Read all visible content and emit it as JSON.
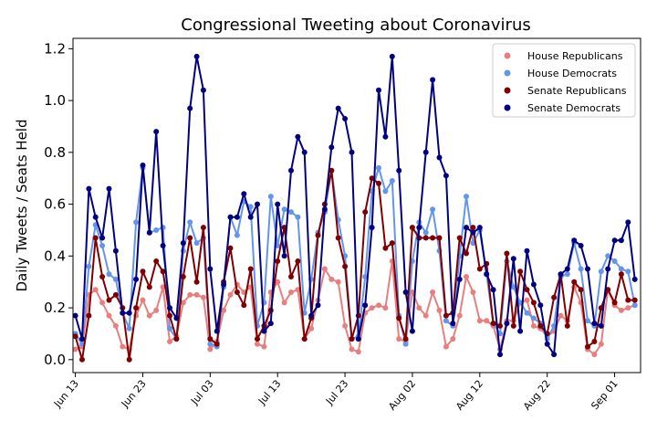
{
  "chart_data": {
    "type": "line",
    "title": "Congressional Tweeting about Coronavirus",
    "ylabel": "Daily Tweets / Seats Held",
    "xlabel": "",
    "ylim": [
      -0.05,
      1.24
    ],
    "yticks": [
      0.0,
      0.2,
      0.4,
      0.6,
      0.8,
      1.0,
      1.2
    ],
    "ytick_labels": [
      "0.0",
      "0.2",
      "0.4",
      "0.6",
      "0.8",
      "1.0",
      "1.2"
    ],
    "x_start": "2020-06-13",
    "x_end": "2020-09-05",
    "xticks": [
      "2020-06-13",
      "2020-06-23",
      "2020-07-03",
      "2020-07-13",
      "2020-07-23",
      "2020-08-02",
      "2020-08-12",
      "2020-08-22",
      "2020-09-01"
    ],
    "xtick_labels": [
      "Jun 13",
      "Jun 23",
      "Jul 03",
      "Jul 13",
      "Jul 23",
      "Aug 02",
      "Aug 12",
      "Aug 22",
      "Sep 01"
    ],
    "legend_position": "top-right",
    "series": [
      {
        "name": "House Republicans",
        "color": "#e77f7f",
        "x": [
          "2020-06-13",
          "2020-06-14",
          "2020-06-15",
          "2020-06-16",
          "2020-06-17",
          "2020-06-18",
          "2020-06-19",
          "2020-06-20",
          "2020-06-21",
          "2020-06-22",
          "2020-06-23",
          "2020-06-24",
          "2020-06-25",
          "2020-06-26",
          "2020-06-27",
          "2020-06-28",
          "2020-06-29",
          "2020-06-30",
          "2020-07-01",
          "2020-07-02",
          "2020-07-03",
          "2020-07-04",
          "2020-07-05",
          "2020-07-06",
          "2020-07-07",
          "2020-07-08",
          "2020-07-09",
          "2020-07-10",
          "2020-07-11",
          "2020-07-12",
          "2020-07-13",
          "2020-07-14",
          "2020-07-15",
          "2020-07-16",
          "2020-07-17",
          "2020-07-18",
          "2020-07-19",
          "2020-07-20",
          "2020-07-21",
          "2020-07-22",
          "2020-07-23",
          "2020-07-24",
          "2020-07-25",
          "2020-07-26",
          "2020-07-27",
          "2020-07-28",
          "2020-07-29",
          "2020-07-30",
          "2020-07-31",
          "2020-08-01",
          "2020-08-02",
          "2020-08-03",
          "2020-08-04",
          "2020-08-05",
          "2020-08-06",
          "2020-08-07",
          "2020-08-08",
          "2020-08-09",
          "2020-08-10",
          "2020-08-11",
          "2020-08-12",
          "2020-08-13",
          "2020-08-14",
          "2020-08-15",
          "2020-08-16",
          "2020-08-17",
          "2020-08-18",
          "2020-08-19",
          "2020-08-20",
          "2020-08-21",
          "2020-08-22",
          "2020-08-23",
          "2020-08-24",
          "2020-08-25",
          "2020-08-26",
          "2020-08-27",
          "2020-08-28",
          "2020-08-29",
          "2020-08-30",
          "2020-08-31",
          "2020-09-01",
          "2020-09-02",
          "2020-09-03",
          "2020-09-04"
        ],
        "values": [
          0.04,
          0.05,
          0.25,
          0.27,
          0.22,
          0.17,
          0.13,
          0.05,
          0.04,
          0.17,
          0.23,
          0.17,
          0.19,
          0.28,
          0.07,
          0.09,
          0.22,
          0.25,
          0.25,
          0.24,
          0.04,
          0.07,
          0.19,
          0.25,
          0.29,
          0.26,
          0.28,
          0.06,
          0.05,
          0.26,
          0.3,
          0.22,
          0.26,
          0.27,
          0.08,
          0.12,
          0.23,
          0.35,
          0.31,
          0.3,
          0.13,
          0.04,
          0.03,
          0.18,
          0.2,
          0.21,
          0.2,
          0.38,
          0.08,
          0.07,
          0.26,
          0.2,
          0.17,
          0.26,
          0.19,
          0.05,
          0.08,
          0.17,
          0.32,
          0.26,
          0.15,
          0.15,
          0.13,
          0.04,
          0.15,
          0.15,
          0.22,
          0.23,
          0.13,
          0.12,
          0.09,
          0.11,
          0.17,
          0.15,
          0.28,
          0.22,
          0.04,
          0.02,
          0.06,
          0.27,
          0.21,
          0.19,
          0.2,
          0.21
        ]
      },
      {
        "name": "House Democrats",
        "color": "#6495ed",
        "x": [
          "2020-06-13",
          "2020-06-14",
          "2020-06-15",
          "2020-06-16",
          "2020-06-17",
          "2020-06-18",
          "2020-06-19",
          "2020-06-20",
          "2020-06-21",
          "2020-06-22",
          "2020-06-23",
          "2020-06-24",
          "2020-06-25",
          "2020-06-26",
          "2020-06-27",
          "2020-06-28",
          "2020-06-29",
          "2020-06-30",
          "2020-07-01",
          "2020-07-02",
          "2020-07-03",
          "2020-07-04",
          "2020-07-05",
          "2020-07-06",
          "2020-07-07",
          "2020-07-08",
          "2020-07-09",
          "2020-07-10",
          "2020-07-11",
          "2020-07-12",
          "2020-07-13",
          "2020-07-14",
          "2020-07-15",
          "2020-07-16",
          "2020-07-17",
          "2020-07-18",
          "2020-07-19",
          "2020-07-20",
          "2020-07-21",
          "2020-07-22",
          "2020-07-23",
          "2020-07-24",
          "2020-07-25",
          "2020-07-26",
          "2020-07-27",
          "2020-07-28",
          "2020-07-29",
          "2020-07-30",
          "2020-07-31",
          "2020-08-01",
          "2020-08-02",
          "2020-08-03",
          "2020-08-04",
          "2020-08-05",
          "2020-08-06",
          "2020-08-07",
          "2020-08-08",
          "2020-08-09",
          "2020-08-10",
          "2020-08-11",
          "2020-08-12",
          "2020-08-13",
          "2020-08-14",
          "2020-08-15",
          "2020-08-16",
          "2020-08-17",
          "2020-08-18",
          "2020-08-19",
          "2020-08-20",
          "2020-08-21",
          "2020-08-22",
          "2020-08-23",
          "2020-08-24",
          "2020-08-25",
          "2020-08-26",
          "2020-08-27",
          "2020-08-28",
          "2020-08-29",
          "2020-08-30",
          "2020-08-31",
          "2020-09-01",
          "2020-09-02",
          "2020-09-03",
          "2020-09-04"
        ],
        "values": [
          0.1,
          0.06,
          0.36,
          0.52,
          0.44,
          0.33,
          0.31,
          0.18,
          0.12,
          0.53,
          0.74,
          0.49,
          0.5,
          0.51,
          0.12,
          0.08,
          0.42,
          0.53,
          0.45,
          0.47,
          0.06,
          0.05,
          0.28,
          0.55,
          0.48,
          0.61,
          0.59,
          0.13,
          0.22,
          0.63,
          0.44,
          0.58,
          0.57,
          0.55,
          0.18,
          0.31,
          0.49,
          0.57,
          0.73,
          0.54,
          0.4,
          0.08,
          0.09,
          0.32,
          0.65,
          0.74,
          0.65,
          0.69,
          0.17,
          0.06,
          0.38,
          0.53,
          0.49,
          0.58,
          0.42,
          0.15,
          0.13,
          0.4,
          0.63,
          0.45,
          0.5,
          0.33,
          0.14,
          0.1,
          0.38,
          0.28,
          0.22,
          0.18,
          0.16,
          0.14,
          0.08,
          0.13,
          0.32,
          0.33,
          0.45,
          0.35,
          0.15,
          0.13,
          0.34,
          0.4,
          0.38,
          0.35,
          0.34,
          0.21
        ]
      },
      {
        "name": "Senate Republicans",
        "color": "#800000",
        "x": [
          "2020-06-13",
          "2020-06-14",
          "2020-06-15",
          "2020-06-16",
          "2020-06-17",
          "2020-06-18",
          "2020-06-19",
          "2020-06-20",
          "2020-06-21",
          "2020-06-22",
          "2020-06-23",
          "2020-06-24",
          "2020-06-25",
          "2020-06-26",
          "2020-06-27",
          "2020-06-28",
          "2020-06-29",
          "2020-06-30",
          "2020-07-01",
          "2020-07-02",
          "2020-07-03",
          "2020-07-04",
          "2020-07-05",
          "2020-07-06",
          "2020-07-07",
          "2020-07-08",
          "2020-07-09",
          "2020-07-10",
          "2020-07-11",
          "2020-07-12",
          "2020-07-13",
          "2020-07-14",
          "2020-07-15",
          "2020-07-16",
          "2020-07-17",
          "2020-07-18",
          "2020-07-19",
          "2020-07-20",
          "2020-07-21",
          "2020-07-22",
          "2020-07-23",
          "2020-07-24",
          "2020-07-25",
          "2020-07-26",
          "2020-07-27",
          "2020-07-28",
          "2020-07-29",
          "2020-07-30",
          "2020-07-31",
          "2020-08-01",
          "2020-08-02",
          "2020-08-03",
          "2020-08-04",
          "2020-08-05",
          "2020-08-06",
          "2020-08-07",
          "2020-08-08",
          "2020-08-09",
          "2020-08-10",
          "2020-08-11",
          "2020-08-12",
          "2020-08-13",
          "2020-08-14",
          "2020-08-15",
          "2020-08-16",
          "2020-08-17",
          "2020-08-18",
          "2020-08-19",
          "2020-08-20",
          "2020-08-21",
          "2020-08-22",
          "2020-08-23",
          "2020-08-24",
          "2020-08-25",
          "2020-08-26",
          "2020-08-27",
          "2020-08-28",
          "2020-08-29",
          "2020-08-30",
          "2020-08-31",
          "2020-09-01",
          "2020-09-02",
          "2020-09-03",
          "2020-09-04"
        ],
        "values": [
          0.09,
          0.0,
          0.17,
          0.47,
          0.32,
          0.23,
          0.25,
          0.2,
          0.0,
          0.2,
          0.34,
          0.28,
          0.38,
          0.34,
          0.17,
          0.08,
          0.32,
          0.47,
          0.3,
          0.51,
          0.08,
          0.06,
          0.3,
          0.43,
          0.26,
          0.21,
          0.35,
          0.08,
          0.13,
          0.19,
          0.38,
          0.51,
          0.32,
          0.38,
          0.08,
          0.16,
          0.48,
          0.6,
          0.73,
          0.47,
          0.36,
          0.08,
          0.17,
          0.57,
          0.7,
          0.68,
          0.43,
          0.45,
          0.16,
          0.08,
          0.51,
          0.47,
          0.47,
          0.47,
          0.47,
          0.17,
          0.18,
          0.47,
          0.41,
          0.51,
          0.35,
          0.37,
          0.14,
          0.13,
          0.41,
          0.13,
          0.34,
          0.27,
          0.22,
          0.13,
          0.1,
          0.24,
          0.33,
          0.13,
          0.3,
          0.27,
          0.05,
          0.07,
          0.2,
          0.27,
          0.22,
          0.33,
          0.23,
          0.23
        ]
      },
      {
        "name": "Senate Democrats",
        "color": "#000080",
        "x": [
          "2020-06-13",
          "2020-06-14",
          "2020-06-15",
          "2020-06-16",
          "2020-06-17",
          "2020-06-18",
          "2020-06-19",
          "2020-06-20",
          "2020-06-21",
          "2020-06-22",
          "2020-06-23",
          "2020-06-24",
          "2020-06-25",
          "2020-06-26",
          "2020-06-27",
          "2020-06-28",
          "2020-06-29",
          "2020-06-30",
          "2020-07-01",
          "2020-07-02",
          "2020-07-03",
          "2020-07-04",
          "2020-07-05",
          "2020-07-06",
          "2020-07-07",
          "2020-07-08",
          "2020-07-09",
          "2020-07-10",
          "2020-07-11",
          "2020-07-12",
          "2020-07-13",
          "2020-07-14",
          "2020-07-15",
          "2020-07-16",
          "2020-07-17",
          "2020-07-18",
          "2020-07-19",
          "2020-07-20",
          "2020-07-21",
          "2020-07-22",
          "2020-07-23",
          "2020-07-24",
          "2020-07-25",
          "2020-07-26",
          "2020-07-27",
          "2020-07-28",
          "2020-07-29",
          "2020-07-30",
          "2020-07-31",
          "2020-08-01",
          "2020-08-02",
          "2020-08-03",
          "2020-08-04",
          "2020-08-05",
          "2020-08-06",
          "2020-08-07",
          "2020-08-08",
          "2020-08-09",
          "2020-08-10",
          "2020-08-11",
          "2020-08-12",
          "2020-08-13",
          "2020-08-14",
          "2020-08-15",
          "2020-08-16",
          "2020-08-17",
          "2020-08-18",
          "2020-08-19",
          "2020-08-20",
          "2020-08-21",
          "2020-08-22",
          "2020-08-23",
          "2020-08-24",
          "2020-08-25",
          "2020-08-26",
          "2020-08-27",
          "2020-08-28",
          "2020-08-29",
          "2020-08-30",
          "2020-08-31",
          "2020-09-01",
          "2020-09-02",
          "2020-09-03",
          "2020-09-04"
        ],
        "values": [
          0.17,
          0.08,
          0.66,
          0.55,
          0.47,
          0.66,
          0.42,
          0.18,
          0.18,
          0.31,
          0.75,
          0.49,
          0.88,
          0.44,
          0.2,
          0.16,
          0.45,
          0.97,
          1.17,
          1.04,
          0.35,
          0.11,
          0.29,
          0.55,
          0.55,
          0.64,
          0.55,
          0.6,
          0.11,
          0.14,
          0.6,
          0.4,
          0.73,
          0.86,
          0.8,
          0.17,
          0.21,
          0.58,
          0.82,
          0.97,
          0.93,
          0.8,
          0.08,
          0.21,
          0.51,
          1.04,
          0.86,
          1.17,
          0.73,
          0.26,
          0.11,
          0.51,
          0.8,
          1.08,
          0.78,
          0.71,
          0.14,
          0.31,
          0.51,
          0.49,
          0.51,
          0.33,
          0.27,
          0.02,
          0.14,
          0.39,
          0.11,
          0.42,
          0.29,
          0.21,
          0.06,
          0.02,
          0.33,
          0.35,
          0.46,
          0.44,
          0.35,
          0.14,
          0.13,
          0.35,
          0.46,
          0.46,
          0.53,
          0.31
        ]
      }
    ]
  }
}
